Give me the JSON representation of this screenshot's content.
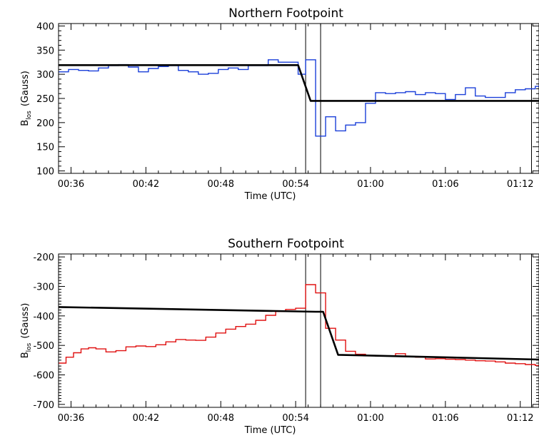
{
  "chart_data": [
    {
      "type": "line",
      "title": "Northern Footpoint",
      "xlabel": "Time (UTC)",
      "ylabel_main": "B",
      "ylabel_sub": "los",
      "ylabel_unit": "(Gauss)",
      "xlim": [
        35,
        73.5
      ],
      "ylim": [
        95,
        405
      ],
      "xticks": [
        {
          "value": 36,
          "label": "00:36"
        },
        {
          "value": 42,
          "label": "00:42"
        },
        {
          "value": 48,
          "label": "00:48"
        },
        {
          "value": 54,
          "label": "00:54"
        },
        {
          "value": 60,
          "label": "01:00"
        },
        {
          "value": 66,
          "label": "01:06"
        },
        {
          "value": 72,
          "label": "01:12"
        }
      ],
      "yticks": [
        100,
        150,
        200,
        250,
        300,
        350,
        400
      ],
      "vlines": [
        54.8,
        56.0,
        72.9
      ],
      "series": [
        {
          "style": "step",
          "color": "#1a3fd9",
          "x": [
            35.0,
            35.8,
            36.6,
            37.4,
            38.2,
            39.0,
            39.8,
            40.6,
            41.4,
            42.2,
            43.0,
            43.8,
            44.6,
            45.4,
            46.2,
            47.0,
            47.8,
            48.6,
            49.4,
            50.2,
            51.0,
            51.8,
            52.6,
            53.4,
            54.2,
            54.8,
            55.6,
            56.4,
            57.2,
            58.0,
            58.8,
            59.6,
            60.4,
            61.2,
            62.0,
            62.8,
            63.6,
            64.4,
            65.2,
            66.0,
            66.8,
            67.6,
            68.4,
            69.2,
            70.0,
            70.8,
            71.6,
            72.4,
            73.2,
            73.5
          ],
          "values": [
            305,
            310,
            308,
            307,
            313,
            318,
            320,
            315,
            305,
            312,
            316,
            318,
            308,
            305,
            300,
            302,
            310,
            313,
            310,
            318,
            318,
            330,
            325,
            325,
            300,
            330,
            172,
            212,
            183,
            195,
            200,
            240,
            262,
            260,
            262,
            264,
            258,
            262,
            260,
            248,
            258,
            272,
            255,
            252,
            252,
            262,
            268,
            270,
            275,
            272
          ]
        },
        {
          "style": "line",
          "color": "#000000",
          "x": [
            35.0,
            54.2,
            55.2,
            73.5
          ],
          "values": [
            319,
            319,
            245,
            245
          ]
        }
      ]
    },
    {
      "type": "line",
      "title": "Southern Footpoint",
      "xlabel": "Time (UTC)",
      "ylabel_main": "B",
      "ylabel_sub": "los",
      "ylabel_unit": "(Gauss)",
      "xlim": [
        35,
        73.5
      ],
      "ylim": [
        -710,
        -190
      ],
      "xticks": [
        {
          "value": 36,
          "label": "00:36"
        },
        {
          "value": 42,
          "label": "00:42"
        },
        {
          "value": 48,
          "label": "00:48"
        },
        {
          "value": 54,
          "label": "00:54"
        },
        {
          "value": 60,
          "label": "01:00"
        },
        {
          "value": 66,
          "label": "01:06"
        },
        {
          "value": 72,
          "label": "01:12"
        }
      ],
      "yticks": [
        -200,
        -300,
        -400,
        -500,
        -600,
        -700
      ],
      "vlines": [
        54.8,
        56.0,
        72.9
      ],
      "series": [
        {
          "style": "step",
          "color": "#e01010",
          "x": [
            35.0,
            35.6,
            36.2,
            36.8,
            37.4,
            38.0,
            38.8,
            39.6,
            40.4,
            41.2,
            42.0,
            42.8,
            43.6,
            44.4,
            45.2,
            46.0,
            46.8,
            47.6,
            48.4,
            49.2,
            50.0,
            50.8,
            51.6,
            52.4,
            53.2,
            54.0,
            54.8,
            55.6,
            56.4,
            57.2,
            58.0,
            58.8,
            59.6,
            60.4,
            61.2,
            62.0,
            62.8,
            63.6,
            64.4,
            65.2,
            66.0,
            66.8,
            67.6,
            68.4,
            69.2,
            70.0,
            70.8,
            71.6,
            72.4,
            73.2
          ],
          "values": [
            -560,
            -540,
            -525,
            -512,
            -508,
            -512,
            -522,
            -518,
            -505,
            -502,
            -504,
            -498,
            -488,
            -480,
            -482,
            -483,
            -472,
            -458,
            -445,
            -436,
            -428,
            -415,
            -398,
            -385,
            -378,
            -374,
            -294,
            -322,
            -442,
            -482,
            -520,
            -530,
            -535,
            -536,
            -536,
            -528,
            -538,
            -540,
            -546,
            -545,
            -547,
            -548,
            -550,
            -552,
            -553,
            -556,
            -560,
            -562,
            -565,
            -568
          ]
        },
        {
          "style": "line",
          "color": "#000000",
          "x": [
            35.0,
            55.6,
            56.2,
            57.4,
            73.5
          ],
          "values": [
            -370,
            -386,
            -386,
            -532,
            -548
          ]
        }
      ]
    }
  ]
}
